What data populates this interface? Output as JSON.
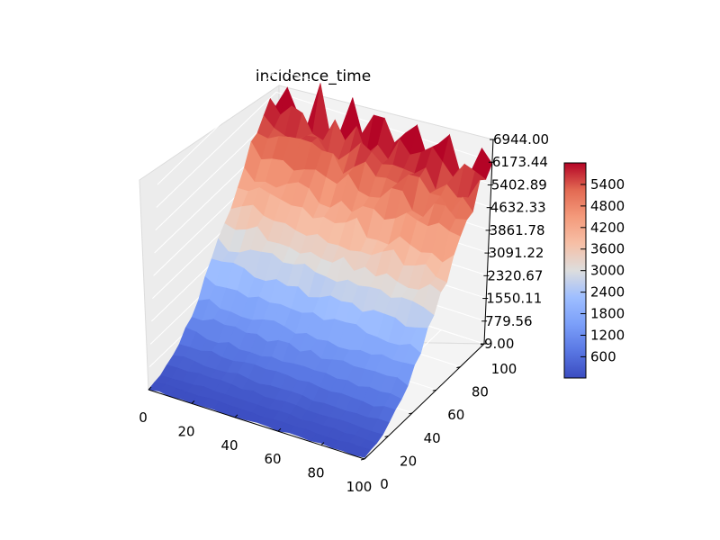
{
  "chart_data": {
    "type": "surface3d",
    "title": "incidence_time",
    "colormap": "coolwarm",
    "x_range": [
      0,
      100
    ],
    "y_range": [
      0,
      100
    ],
    "z_range": [
      9.0,
      6944.0
    ],
    "x_ticks": [
      "0",
      "20",
      "40",
      "60",
      "80",
      "100"
    ],
    "y_ticks": [
      "0",
      "20",
      "40",
      "60",
      "80",
      "100"
    ],
    "z_ticks": [
      "9.00",
      "779.56",
      "1550.11",
      "2320.67",
      "3091.22",
      "3861.78",
      "4632.33",
      "5402.89",
      "6173.44",
      "6944.00"
    ],
    "colorbar": {
      "range": [
        9.0,
        6000
      ],
      "ticks": [
        "600",
        "1200",
        "1800",
        "2400",
        "3000",
        "3600",
        "4200",
        "4800",
        "5400"
      ]
    },
    "surface_profile": {
      "y": [
        0,
        10,
        20,
        30,
        40,
        50,
        60,
        70,
        80,
        90,
        100
      ],
      "z": [
        40,
        150,
        420,
        850,
        1500,
        2400,
        3300,
        4100,
        4900,
        5500,
        6000
      ]
    },
    "grid": true
  }
}
